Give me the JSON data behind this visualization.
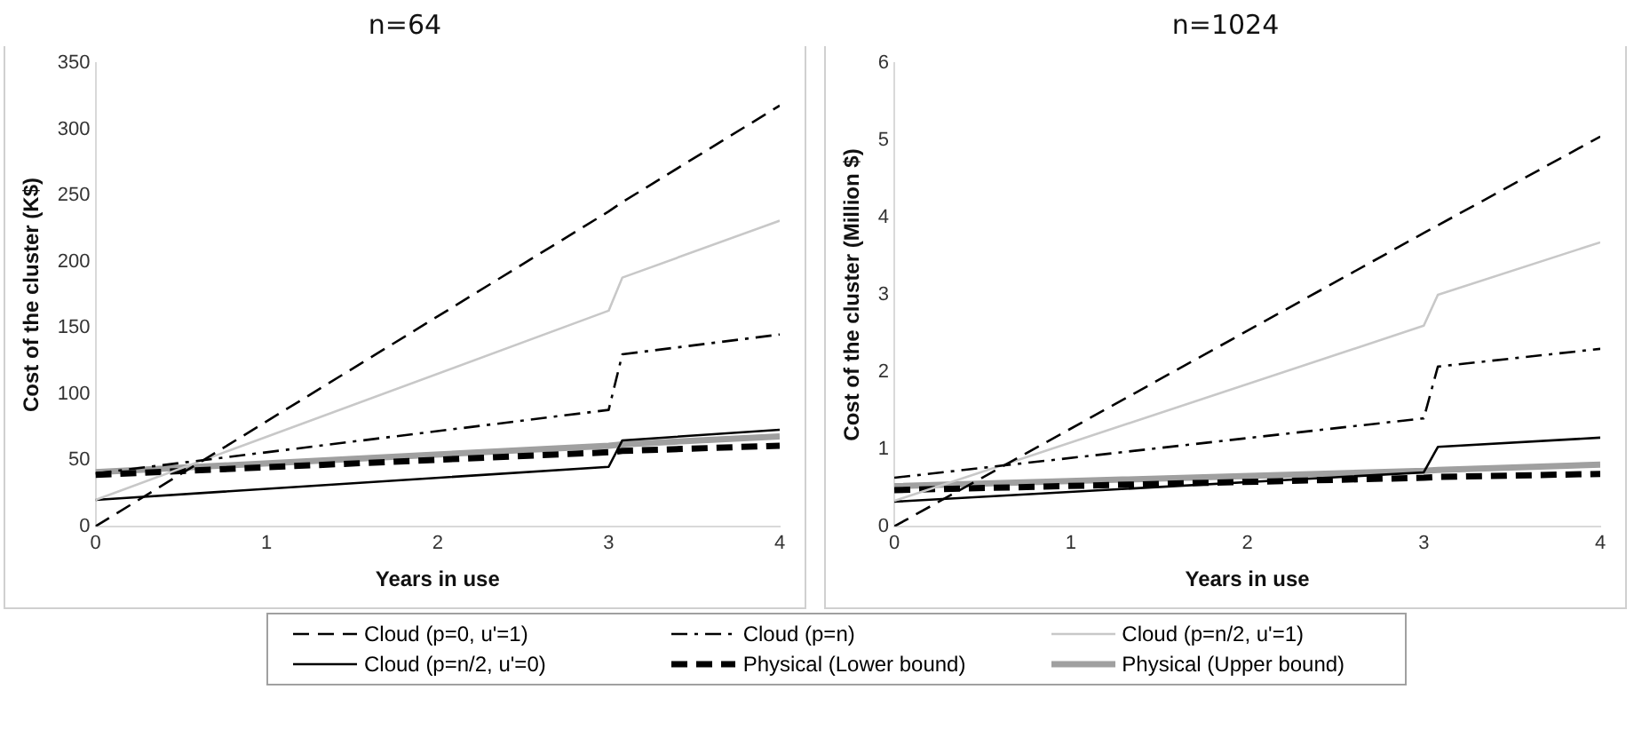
{
  "chart_data": [
    {
      "type": "line",
      "title": "n=64",
      "xlabel": "Years in use",
      "ylabel": "Cost of the cluster (K$)",
      "x": [
        0,
        3,
        3.08,
        4
      ],
      "xlim": [
        0,
        4
      ],
      "xticks": [
        0,
        1,
        2,
        3,
        4
      ],
      "ylim": [
        0,
        350
      ],
      "yticks": [
        0,
        50,
        100,
        150,
        200,
        250,
        300,
        350
      ],
      "grid": false,
      "legend": "bottom",
      "marker": "none",
      "series": [
        {
          "name": "Cloud (p=0, u'=1)",
          "color": "#000000",
          "line_style": "dashed",
          "values": [
            0,
            238,
            245,
            318
          ]
        },
        {
          "name": "Cloud (p=n)",
          "color": "#000000",
          "line_style": "dashdot",
          "values": [
            40,
            88,
            130,
            145
          ]
        },
        {
          "name": "Cloud (p=n/2, u'=1)",
          "color": "#c8c8c8",
          "line_style": "solid",
          "values": [
            20,
            163,
            188,
            231
          ]
        },
        {
          "name": "Cloud (p=n/2, u'=0)",
          "color": "#000000",
          "line_style": "solid",
          "values": [
            20,
            45,
            65,
            73
          ]
        },
        {
          "name": "Physical (Lower bound)",
          "color": "#000000",
          "line_style": "dashed",
          "values": [
            39,
            56,
            57,
            61
          ]
        },
        {
          "name": "Physical (Upper bound)",
          "color": "#a0a0a0",
          "line_style": "solid",
          "values": [
            41,
            61,
            62,
            68
          ]
        }
      ]
    },
    {
      "type": "line",
      "title": "n=1024",
      "xlabel": "Years in use",
      "ylabel": "Cost of the cluster (Million $)",
      "x": [
        0,
        3,
        3.08,
        4
      ],
      "xlim": [
        0,
        4
      ],
      "xticks": [
        0,
        1,
        2,
        3,
        4
      ],
      "ylim": [
        0,
        6
      ],
      "yticks": [
        0,
        1,
        2,
        3,
        4,
        5,
        6
      ],
      "grid": false,
      "marker": "none",
      "series": [
        {
          "color": "#000000",
          "line_style": "dashed",
          "values": [
            0,
            3.8,
            3.9,
            5.05
          ]
        },
        {
          "color": "#000000",
          "line_style": "dashdot",
          "values": [
            0.63,
            1.4,
            2.07,
            2.3
          ]
        },
        {
          "color": "#c8c8c8",
          "line_style": "solid",
          "values": [
            0.33,
            2.6,
            3.0,
            3.68
          ]
        },
        {
          "color": "#000000",
          "line_style": "solid",
          "values": [
            0.32,
            0.7,
            1.03,
            1.15
          ]
        },
        {
          "color": "#000000",
          "line_style": "dashed",
          "values": [
            0.47,
            0.63,
            0.64,
            0.68
          ]
        },
        {
          "color": "#a0a0a0",
          "line_style": "solid",
          "values": [
            0.52,
            0.72,
            0.73,
            0.8
          ]
        }
      ]
    }
  ]
}
